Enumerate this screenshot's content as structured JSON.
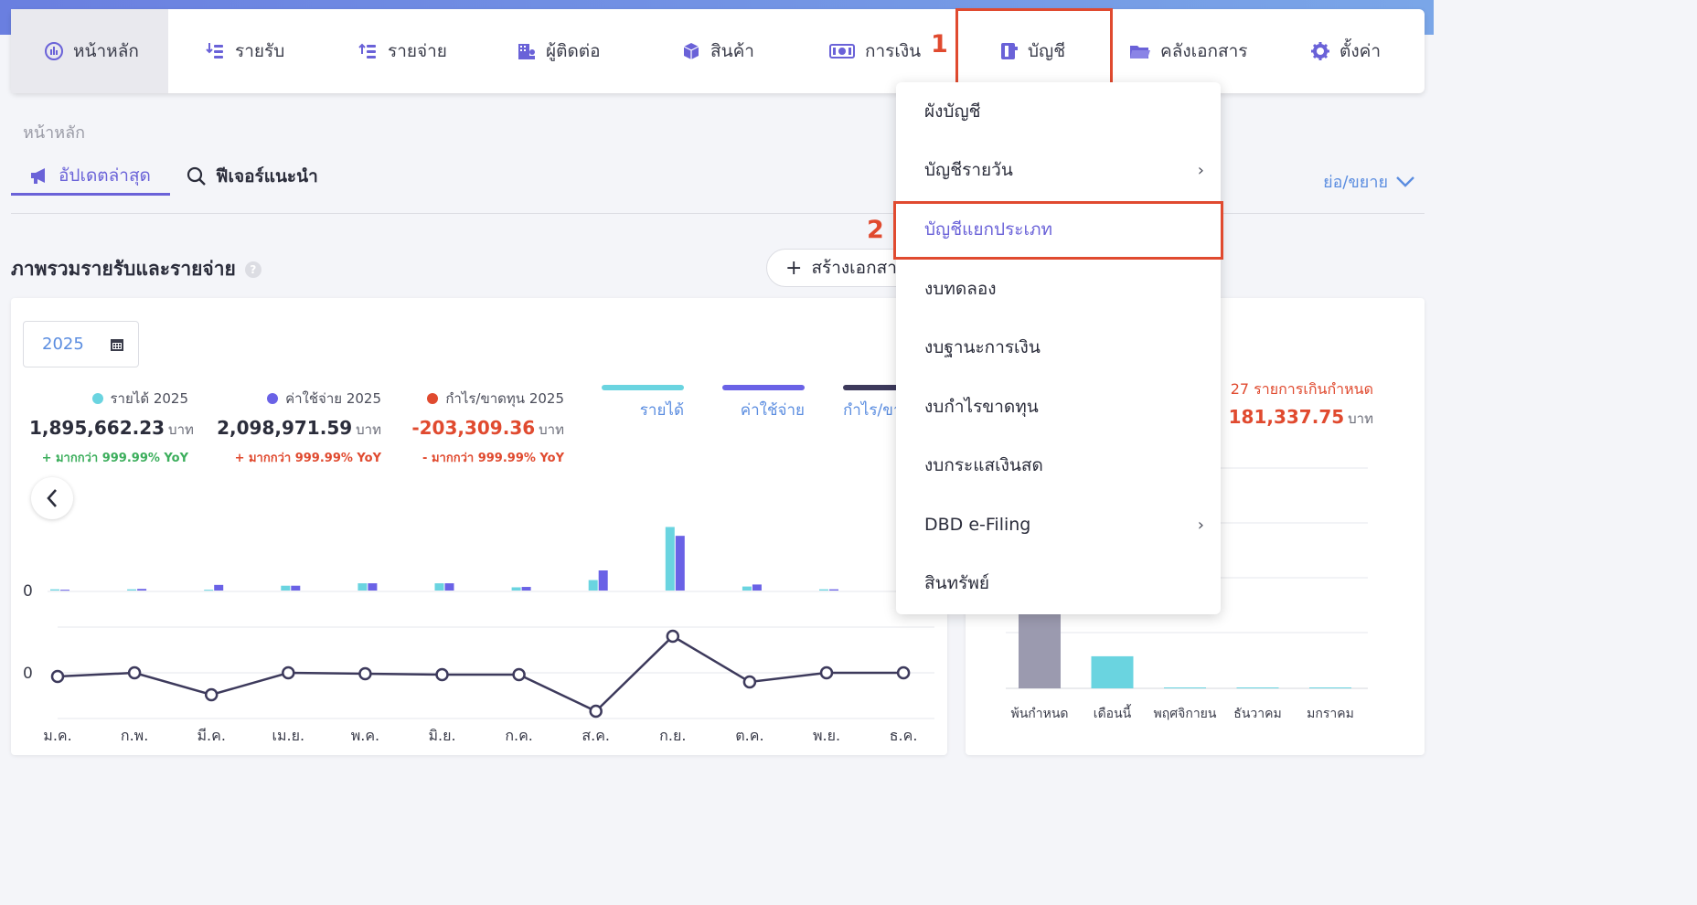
{
  "nav": {
    "items": [
      {
        "label": "หน้าหลัก",
        "icon": "dashboard-icon"
      },
      {
        "label": "รายรับ",
        "icon": "income-icon"
      },
      {
        "label": "รายจ่าย",
        "icon": "expense-icon"
      },
      {
        "label": "ผู้ติดต่อ",
        "icon": "contacts-icon"
      },
      {
        "label": "สินค้า",
        "icon": "box-icon"
      },
      {
        "label": "การเงิน",
        "icon": "money-icon"
      },
      {
        "label": "บัญชี",
        "icon": "ledger-icon"
      },
      {
        "label": "คลังเอกสาร",
        "icon": "folder-icon"
      },
      {
        "label": "ตั้งค่า",
        "icon": "gear-icon"
      }
    ],
    "step1": "1",
    "step2": "2"
  },
  "breadcrumb": "หน้าหลัก",
  "tabs": {
    "latest": "อัปเดตล่าสุด",
    "features": "ฟีเจอร์แนะนำ",
    "expand": "ย่อ/ขยาย"
  },
  "section": {
    "title": "ภาพรวมรายรับและรายจ่าย",
    "help": "?",
    "create_button": "สร้างเอกสาร"
  },
  "overview": {
    "year": "2025",
    "stats": [
      {
        "label": "รายได้ 2025",
        "value": "1,895,662.23",
        "unit": "บาท",
        "yoy": "+ มากกว่า 999.99% YoY"
      },
      {
        "label": "ค่าใช้จ่าย 2025",
        "value": "2,098,971.59",
        "unit": "บาท",
        "yoy": "+ มากกว่า 999.99% YoY"
      },
      {
        "label": "กำไร/ขาดทุน 2025",
        "value": "-203,309.36",
        "unit": "บาท",
        "yoy": "- มากกว่า 999.99% YoY"
      }
    ],
    "legend": [
      "รายได้",
      "ค่าใช้จ่าย",
      "กำไร/ขา"
    ],
    "zero_label": "0",
    "colors": {
      "income": "#6ad4e0",
      "expense": "#6a62e6",
      "profit": "#3d3a5c",
      "up": "#3cae5c",
      "down": "#e04a2f"
    }
  },
  "chart_data": [
    {
      "type": "bar",
      "categories": [
        "ม.ค.",
        "ก.พ.",
        "มี.ค.",
        "เม.ย.",
        "พ.ค.",
        "มิ.ย.",
        "ก.ค.",
        "ส.ค.",
        "ก.ย.",
        "ต.ค.",
        "พ.ย.",
        "ธ.ค."
      ],
      "series": [
        {
          "name": "รายได้",
          "values": [
            0.3,
            0.3,
            0.2,
            1.2,
            1.8,
            1.8,
            0.8,
            2.6,
            15.8,
            1.0,
            0.3,
            0.2
          ]
        },
        {
          "name": "ค่าใช้จ่าย",
          "values": [
            0.2,
            0.4,
            1.4,
            1.2,
            1.8,
            1.8,
            0.9,
            5.0,
            13.6,
            1.5,
            0.3,
            0.1
          ]
        }
      ]
    },
    {
      "type": "line",
      "categories": [
        "ม.ค.",
        "ก.พ.",
        "มี.ค.",
        "เม.ย.",
        "พ.ค.",
        "มิ.ย.",
        "ก.ค.",
        "ส.ค.",
        "ก.ย.",
        "ต.ค.",
        "พ.ย.",
        "ธ.ค."
      ],
      "series": [
        {
          "name": "กำไร/ขาดทุน",
          "values": [
            -0.2,
            0.0,
            -1.2,
            0.0,
            -0.05,
            -0.1,
            -0.1,
            -2.1,
            2.0,
            -0.5,
            0.0,
            0.0
          ]
        }
      ]
    },
    {
      "type": "bar",
      "categories": [
        "พ้นกำหนด",
        "เดือนนี้",
        "พฤศจิกายน",
        "ธันวาคม",
        "มกราคม"
      ],
      "values": [
        150000,
        31337.75,
        0,
        0,
        0
      ]
    }
  ],
  "right_card": {
    "overdue_text": "27 รายการเกินกำหนด",
    "amount": "181,337.75",
    "unit": "บาท"
  },
  "dropdown": {
    "items": [
      {
        "label": "ผังบัญชี",
        "chevron": ""
      },
      {
        "label": "บัญชีรายวัน",
        "chevron": "›"
      },
      {
        "label": "บัญชีแยกประเภท",
        "chevron": ""
      },
      {
        "label": "งบทดลอง",
        "chevron": ""
      },
      {
        "label": "งบฐานะการเงิน",
        "chevron": ""
      },
      {
        "label": "งบกำไรขาดทุน",
        "chevron": ""
      },
      {
        "label": "งบกระแสเงินสด",
        "chevron": ""
      },
      {
        "label": "DBD e-Filing",
        "chevron": "›"
      },
      {
        "label": "สินทรัพย์",
        "chevron": ""
      }
    ]
  }
}
